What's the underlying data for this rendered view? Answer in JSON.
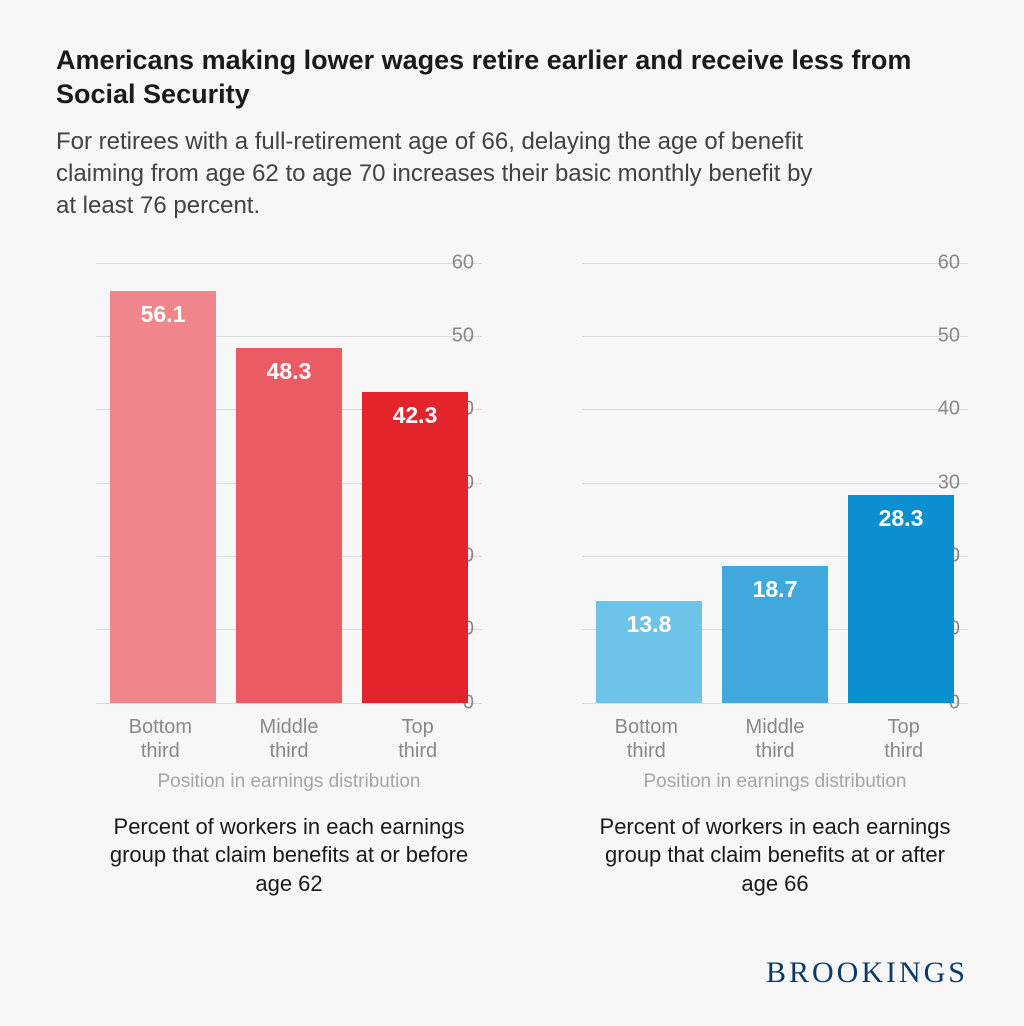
{
  "title": "Americans making lower wages retire earlier and receive less from Social Security",
  "subtitle": "For retirees with a full-retirement age of 66, delaying the age of benefit claiming from age 62 to age 70 increases their basic monthly benefit by at least 76 percent.",
  "brand": "BROOKINGS",
  "chart": {
    "ylim": [
      0,
      60
    ],
    "ytick_step": 10,
    "yticks": [
      0,
      10,
      20,
      30,
      40,
      50,
      60
    ],
    "grid_color": "#dcdcdc",
    "background_color": "#f7f7f7",
    "bar_width_pct": 84,
    "value_label_color": "#ffffff",
    "value_label_fontsize": 23,
    "tick_label_color": "#888888",
    "tick_label_fontsize": 20,
    "axis_title_color": "#a5a5a5",
    "group_title_color": "#1a1a1a",
    "panels": [
      {
        "axis_title": "Position in earnings distribution",
        "group_title": "Percent of workers in each earnings group that claim benefits at or before age 62",
        "bars": [
          {
            "label_line1": "Bottom",
            "label_line2": "third",
            "value": 56.1,
            "color": "#f0858b"
          },
          {
            "label_line1": "Middle",
            "label_line2": "third",
            "value": 48.3,
            "color": "#ea5b63"
          },
          {
            "label_line1": "Top",
            "label_line2": "third",
            "value": 42.3,
            "color": "#e3242b"
          }
        ]
      },
      {
        "axis_title": "Position in earnings distribution",
        "group_title": "Percent of workers in each earnings group that claim benefits at or after age 66",
        "bars": [
          {
            "label_line1": "Bottom",
            "label_line2": "third",
            "value": 13.8,
            "color": "#6dc3e8"
          },
          {
            "label_line1": "Middle",
            "label_line2": "third",
            "value": 18.7,
            "color": "#3fa9de"
          },
          {
            "label_line1": "Top",
            "label_line2": "third",
            "value": 28.3,
            "color": "#0a8fd1"
          }
        ]
      }
    ]
  }
}
